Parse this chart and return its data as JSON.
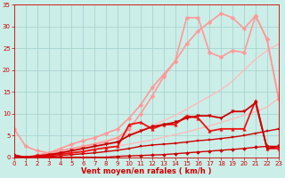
{
  "xlabel": "Vent moyen/en rafales ( km/h )",
  "background_color": "#cceee8",
  "grid_color": "#aad4ce",
  "x_range": [
    0,
    23
  ],
  "y_range": [
    0,
    35
  ],
  "yticks": [
    0,
    5,
    10,
    15,
    20,
    25,
    30,
    35
  ],
  "xticks": [
    0,
    1,
    2,
    3,
    4,
    5,
    6,
    7,
    8,
    9,
    10,
    11,
    12,
    13,
    14,
    15,
    16,
    17,
    18,
    19,
    20,
    21,
    22,
    23
  ],
  "lines": [
    {
      "x": [
        0,
        1,
        2,
        3,
        4,
        5,
        6,
        7,
        8,
        9,
        10,
        11,
        12,
        13,
        14,
        15,
        16,
        17,
        18,
        19,
        20,
        21,
        22,
        23
      ],
      "y": [
        0,
        0,
        0.2,
        0.5,
        0.8,
        1.1,
        1.4,
        1.8,
        2.2,
        2.6,
        3.0,
        3.5,
        4.0,
        4.6,
        5.2,
        5.8,
        6.5,
        7.2,
        8.0,
        8.8,
        9.6,
        10.5,
        11.5,
        13.5
      ],
      "color": "#ffbbbb",
      "lw": 1.0,
      "marker": null,
      "ms": 0
    },
    {
      "x": [
        0,
        1,
        2,
        3,
        4,
        5,
        6,
        7,
        8,
        9,
        10,
        11,
        12,
        13,
        14,
        15,
        16,
        17,
        18,
        19,
        20,
        21,
        22,
        23
      ],
      "y": [
        0,
        0,
        0.5,
        1.0,
        1.5,
        2.0,
        2.6,
        3.2,
        3.9,
        4.6,
        5.4,
        6.3,
        7.3,
        8.4,
        9.6,
        11.0,
        12.5,
        14.0,
        15.5,
        17.5,
        20.0,
        22.5,
        24.5,
        26.0
      ],
      "color": "#ffbbbb",
      "lw": 1.0,
      "marker": null,
      "ms": 0
    },
    {
      "x": [
        0,
        1,
        2,
        3,
        4,
        5,
        6,
        7,
        8,
        9,
        10,
        11,
        12,
        13,
        14,
        15,
        16,
        17,
        18,
        19,
        20,
        21,
        22,
        23
      ],
      "y": [
        6.5,
        2.5,
        1.5,
        1.0,
        2.0,
        3.0,
        3.8,
        4.5,
        5.5,
        6.5,
        9.0,
        12.0,
        16.0,
        19.0,
        22.0,
        26.0,
        29.0,
        31.0,
        33.0,
        32.0,
        29.5,
        32.5,
        27.0,
        13.5
      ],
      "color": "#ff9999",
      "lw": 1.2,
      "marker": "D",
      "ms": 2.5
    },
    {
      "x": [
        0,
        1,
        2,
        3,
        4,
        5,
        6,
        7,
        8,
        9,
        10,
        11,
        12,
        13,
        14,
        15,
        16,
        17,
        18,
        19,
        20,
        21,
        22,
        23
      ],
      "y": [
        0,
        0,
        0.5,
        1.0,
        1.5,
        2.0,
        2.5,
        3.0,
        3.5,
        4.5,
        6.5,
        10.0,
        14.0,
        18.5,
        22.0,
        32.0,
        32.0,
        24.0,
        23.0,
        24.5,
        24.0,
        32.5,
        27.0,
        13.5
      ],
      "color": "#ff9999",
      "lw": 1.2,
      "marker": "D",
      "ms": 2.5
    },
    {
      "x": [
        0,
        1,
        2,
        3,
        4,
        5,
        6,
        7,
        8,
        9,
        10,
        11,
        12,
        13,
        14,
        15,
        16,
        17,
        18,
        19,
        20,
        21,
        22,
        23
      ],
      "y": [
        0.5,
        0,
        0,
        0,
        0,
        0,
        0,
        0,
        0,
        0.2,
        0.3,
        0.4,
        0.5,
        0.6,
        0.8,
        1.0,
        1.2,
        1.4,
        1.6,
        1.8,
        2.0,
        2.3,
        2.5,
        2.5
      ],
      "color": "#cc0000",
      "lw": 1.0,
      "marker": "D",
      "ms": 2.0
    },
    {
      "x": [
        0,
        1,
        2,
        3,
        4,
        5,
        6,
        7,
        8,
        9,
        10,
        11,
        12,
        13,
        14,
        15,
        16,
        17,
        18,
        19,
        20,
        21,
        22,
        23
      ],
      "y": [
        0.5,
        0,
        0.1,
        0.2,
        0.4,
        0.6,
        0.8,
        1.0,
        1.3,
        1.6,
        2.0,
        2.5,
        2.8,
        3.0,
        3.2,
        3.5,
        3.8,
        4.0,
        4.3,
        4.6,
        5.0,
        5.5,
        6.0,
        6.5
      ],
      "color": "#cc0000",
      "lw": 1.0,
      "marker": "s",
      "ms": 2.0
    },
    {
      "x": [
        0,
        1,
        2,
        3,
        4,
        5,
        6,
        7,
        8,
        9,
        10,
        11,
        12,
        13,
        14,
        15,
        16,
        17,
        18,
        19,
        20,
        21,
        22,
        23
      ],
      "y": [
        0,
        0,
        0.2,
        0.4,
        0.7,
        1.0,
        1.3,
        1.8,
        2.2,
        2.5,
        7.5,
        8.0,
        6.5,
        7.5,
        7.5,
        9.5,
        9.0,
        6.0,
        6.5,
        6.5,
        6.5,
        13.0,
        2.0,
        2.0
      ],
      "color": "#ee1111",
      "lw": 1.3,
      "marker": "^",
      "ms": 2.5
    },
    {
      "x": [
        0,
        1,
        2,
        3,
        4,
        5,
        6,
        7,
        8,
        9,
        10,
        11,
        12,
        13,
        14,
        15,
        16,
        17,
        18,
        19,
        20,
        21,
        22,
        23
      ],
      "y": [
        0,
        0,
        0.3,
        0.6,
        1.0,
        1.5,
        2.0,
        2.5,
        3.0,
        3.5,
        5.0,
        6.0,
        7.0,
        7.5,
        8.0,
        9.0,
        9.5,
        9.5,
        9.0,
        10.5,
        10.5,
        12.5,
        2.0,
        2.5
      ],
      "color": "#cc0000",
      "lw": 1.3,
      "marker": "v",
      "ms": 2.5
    }
  ]
}
